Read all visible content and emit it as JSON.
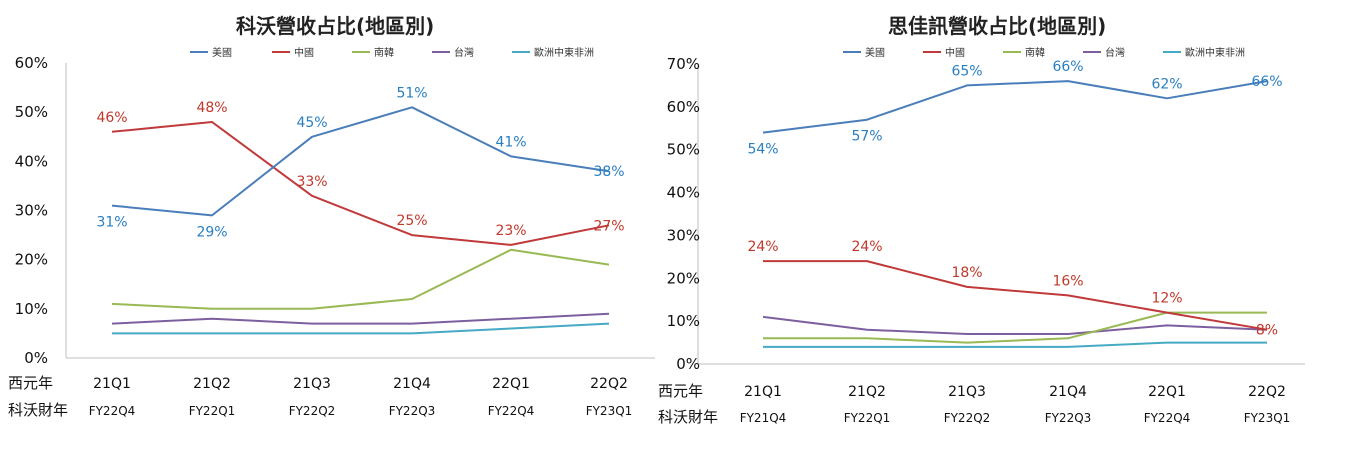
{
  "colors": {
    "us": "#4a7ebb",
    "cn": "#c0393b",
    "kr": "#98b954",
    "tw": "#7d5fa0",
    "eu": "#46aac5",
    "us_label": "#2a7fc0",
    "cn_label": "#c0392b"
  },
  "chart_data": [
    {
      "type": "line",
      "title": "科沃營收占比(地區別)",
      "categories": [
        "21Q1",
        "21Q2",
        "21Q3",
        "21Q4",
        "22Q1",
        "22Q2"
      ],
      "categories_secondary": [
        "FY22Q4",
        "FY22Q1",
        "FY22Q2",
        "FY22Q3",
        "FY22Q4",
        "FY23Q1"
      ],
      "row_label_1": "西元年",
      "row_label_2": "科沃財年",
      "ylim": [
        0,
        60
      ],
      "yticks": [
        "0%",
        "10%",
        "20%",
        "30%",
        "40%",
        "50%",
        "60%"
      ],
      "legend_position": "top",
      "series": [
        {
          "name": "美國",
          "color_key": "us",
          "values": [
            31,
            29,
            45,
            51,
            41,
            38
          ],
          "labels": [
            "31%",
            "29%",
            "45%",
            "51%",
            "41%",
            "38%"
          ],
          "label_pos": [
            "below",
            "below",
            "above",
            "above",
            "above",
            "center"
          ]
        },
        {
          "name": "中國",
          "color_key": "cn",
          "values": [
            46,
            48,
            33,
            25,
            23,
            27
          ],
          "labels": [
            "46%",
            "48%",
            "33%",
            "25%",
            "23%",
            "27%"
          ],
          "label_pos": [
            "above",
            "above",
            "above",
            "above",
            "above",
            "center"
          ]
        },
        {
          "name": "南韓",
          "color_key": "kr",
          "values": [
            11,
            10,
            10,
            12,
            22,
            19
          ]
        },
        {
          "name": "台灣",
          "color_key": "tw",
          "values": [
            7,
            8,
            7,
            7,
            8,
            9
          ]
        },
        {
          "name": "歐洲中東非洲",
          "color_key": "eu",
          "values": [
            5,
            5,
            5,
            5,
            6,
            7
          ]
        }
      ]
    },
    {
      "type": "line",
      "title": "思佳訊營收占比(地區別)",
      "categories": [
        "21Q1",
        "21Q2",
        "21Q3",
        "21Q4",
        "22Q1",
        "22Q2"
      ],
      "categories_secondary": [
        "FY21Q4",
        "FY22Q1",
        "FY22Q2",
        "FY22Q3",
        "FY22Q4",
        "FY23Q1"
      ],
      "row_label_1": "西元年",
      "row_label_2": "科沃財年",
      "ylim": [
        0,
        70
      ],
      "yticks": [
        "0%",
        "10%",
        "20%",
        "30%",
        "40%",
        "50%",
        "60%",
        "70%"
      ],
      "legend_position": "top",
      "series": [
        {
          "name": "美國",
          "color_key": "us",
          "values": [
            54,
            57,
            65,
            66,
            62,
            66
          ],
          "labels": [
            "54%",
            "57%",
            "65%",
            "66%",
            "62%",
            "66%"
          ],
          "label_pos": [
            "below",
            "below",
            "above",
            "above",
            "above",
            "center"
          ]
        },
        {
          "name": "中國",
          "color_key": "cn",
          "values": [
            24,
            24,
            18,
            16,
            12,
            8
          ],
          "labels": [
            "24%",
            "24%",
            "18%",
            "16%",
            "12%",
            "8%"
          ],
          "label_pos": [
            "above",
            "above",
            "above",
            "above",
            "above",
            "center"
          ]
        },
        {
          "name": "南韓",
          "color_key": "kr",
          "values": [
            6,
            6,
            5,
            6,
            12,
            12
          ]
        },
        {
          "name": "台灣",
          "color_key": "tw",
          "values": [
            11,
            8,
            7,
            7,
            9,
            8
          ]
        },
        {
          "name": "歐洲中東非洲",
          "color_key": "eu",
          "values": [
            4,
            4,
            4,
            4,
            5,
            5
          ]
        }
      ]
    }
  ]
}
